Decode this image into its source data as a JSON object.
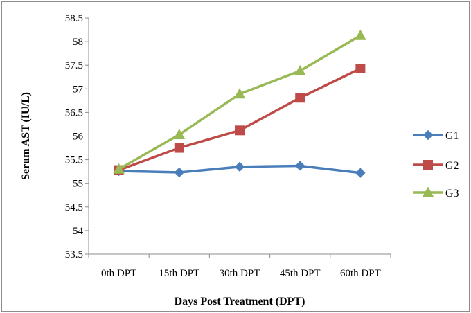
{
  "chart_data": {
    "type": "line",
    "title": "",
    "xlabel": "Days Post Treatment (DPT)",
    "ylabel": "Serum AST (IU/L)",
    "categories": [
      "0th DPT",
      "15th DPT",
      "30th DPT",
      "45th DPT",
      "60th DPT"
    ],
    "ylim": [
      53.5,
      58.5
    ],
    "ytick_step": 0.5,
    "y_ticks": [
      "53.5",
      "54",
      "54.5",
      "55",
      "55.5",
      "56",
      "56.5",
      "57",
      "57.5",
      "58",
      "58.5"
    ],
    "grid": false,
    "legend_position": "right",
    "series": [
      {
        "name": "G1",
        "color": "#4a7ebb",
        "marker": "diamond",
        "values": [
          55.26,
          55.23,
          55.35,
          55.37,
          55.22
        ]
      },
      {
        "name": "G2",
        "color": "#be4b48",
        "marker": "square",
        "values": [
          55.28,
          55.75,
          56.12,
          56.81,
          57.43
        ]
      },
      {
        "name": "G3",
        "color": "#98b954",
        "marker": "triangle",
        "values": [
          55.3,
          56.03,
          56.89,
          57.38,
          58.13
        ]
      }
    ]
  }
}
